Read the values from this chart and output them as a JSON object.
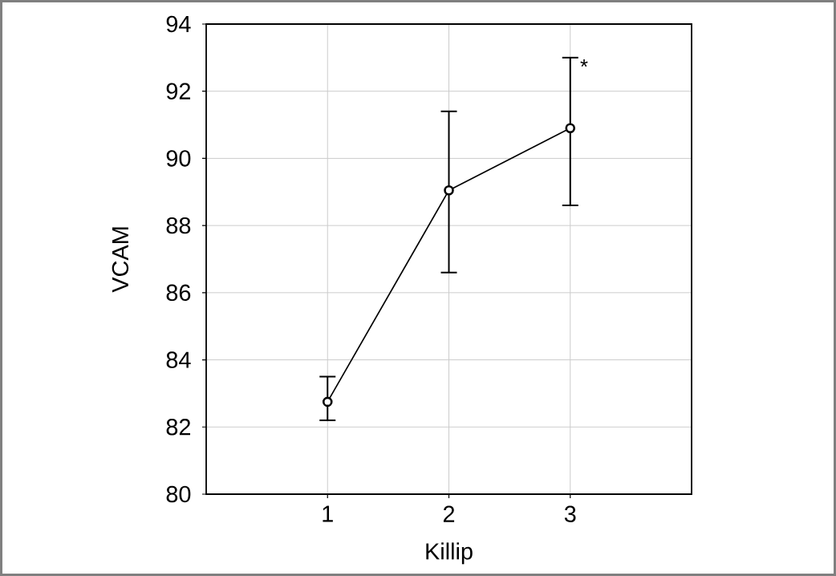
{
  "chart_data": {
    "type": "line",
    "xlabel": "Killip",
    "ylabel": "VCAM",
    "x": [
      1,
      2,
      3
    ],
    "values": [
      82.75,
      89.05,
      90.9
    ],
    "errors": [
      [
        82.2,
        83.5
      ],
      [
        86.6,
        91.4
      ],
      [
        88.6,
        93.0
      ]
    ],
    "color": "#000000",
    "marker": "circle",
    "line_style": "solid",
    "xlim": [
      0,
      4
    ],
    "xticks": [
      1,
      2,
      3
    ],
    "ylim": [
      80,
      94
    ],
    "yticks": [
      80,
      82,
      84,
      86,
      88,
      90,
      92,
      94
    ],
    "grid": true,
    "annotations": [
      {
        "text": "*",
        "x": 3,
        "y": 93.0
      }
    ]
  }
}
